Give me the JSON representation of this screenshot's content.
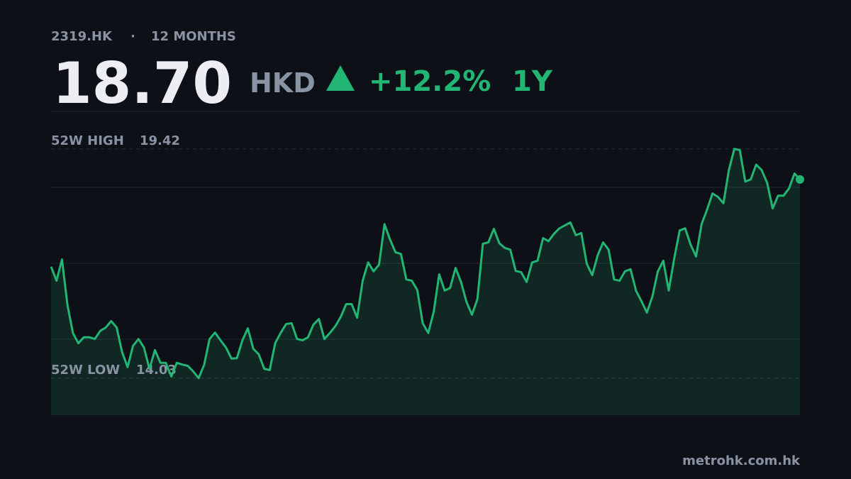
{
  "chart_data": {
    "type": "line",
    "ticker": "2319.HK",
    "separator": "·",
    "period": "12 MONTHS",
    "price": "18.70",
    "currency": "HKD",
    "change": "+12.2%",
    "range_label": "1Y",
    "high_label": "52W HIGH",
    "high": 19.42,
    "low_label": "52W LOW",
    "low": 14.03,
    "color": "#22b573",
    "ylim": [
      13.16,
      20.3
    ],
    "values": [
      16.65,
      16.32,
      16.82,
      15.75,
      15.09,
      14.85,
      14.99,
      14.99,
      14.95,
      15.14,
      15.22,
      15.37,
      15.22,
      14.64,
      14.29,
      14.79,
      14.95,
      14.75,
      14.25,
      14.69,
      14.39,
      14.39,
      14.07,
      14.39,
      14.35,
      14.32,
      14.19,
      14.03,
      14.34,
      14.95,
      15.1,
      14.92,
      14.75,
      14.49,
      14.5,
      14.92,
      15.2,
      14.72,
      14.59,
      14.25,
      14.22,
      14.85,
      15.09,
      15.3,
      15.32,
      14.95,
      14.92,
      14.99,
      15.29,
      15.42,
      14.95,
      15.09,
      15.25,
      15.47,
      15.77,
      15.77,
      15.45,
      16.32,
      16.75,
      16.54,
      16.7,
      17.65,
      17.29,
      16.99,
      16.95,
      16.35,
      16.32,
      16.1,
      15.32,
      15.09,
      15.59,
      16.47,
      16.09,
      16.15,
      16.62,
      16.29,
      15.82,
      15.52,
      15.89,
      17.19,
      17.22,
      17.54,
      17.2,
      17.09,
      17.05,
      16.55,
      16.52,
      16.29,
      16.75,
      16.79,
      17.32,
      17.25,
      17.42,
      17.55,
      17.62,
      17.69,
      17.39,
      17.44,
      16.72,
      16.45,
      16.92,
      17.22,
      17.05,
      16.35,
      16.32,
      16.54,
      16.59,
      16.09,
      15.84,
      15.57,
      15.95,
      16.54,
      16.79,
      16.09,
      16.84,
      17.5,
      17.55,
      17.17,
      16.89,
      17.65,
      17.99,
      18.37,
      18.29,
      18.14,
      18.92,
      19.42,
      19.39,
      18.65,
      18.7,
      19.05,
      18.92,
      18.62,
      18.02,
      18.32,
      18.32,
      18.49,
      18.84,
      18.7
    ]
  },
  "footer": {
    "source": "metrohk.com.hk"
  }
}
